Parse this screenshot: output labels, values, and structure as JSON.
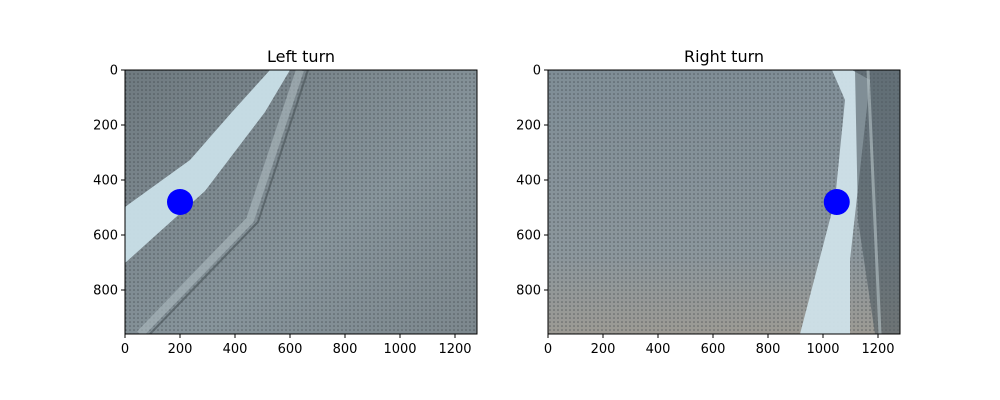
{
  "chart_data": [
    {
      "type": "scatter",
      "title": "Left turn",
      "background": "photo of grey perforated mesh surface with a light-blue strip running diagonally from lower-left to upper-center",
      "xlim": [
        0,
        1280
      ],
      "ylim": [
        960,
        0
      ],
      "x_ticks": [
        0,
        200,
        400,
        600,
        800,
        1000,
        1200
      ],
      "y_ticks": [
        0,
        200,
        400,
        600,
        800
      ],
      "points": [
        {
          "x": 200,
          "y": 480
        }
      ],
      "point_color": "#0000ff"
    },
    {
      "type": "scatter",
      "title": "Right turn",
      "background": "photo of grey perforated mesh surface with a light-blue strip running near-vertically on the right side",
      "xlim": [
        0,
        1280
      ],
      "ylim": [
        960,
        0
      ],
      "x_ticks": [
        0,
        200,
        400,
        600,
        800,
        1000,
        1200
      ],
      "y_ticks": [
        0,
        200,
        400,
        600,
        800
      ],
      "points": [
        {
          "x": 1050,
          "y": 480
        }
      ],
      "point_color": "#0000ff"
    }
  ],
  "colors": {
    "mesh": "#7f8c93",
    "mesh_dark": "#5c676d",
    "strip": "#c7dde6",
    "point": "#0000ff"
  }
}
